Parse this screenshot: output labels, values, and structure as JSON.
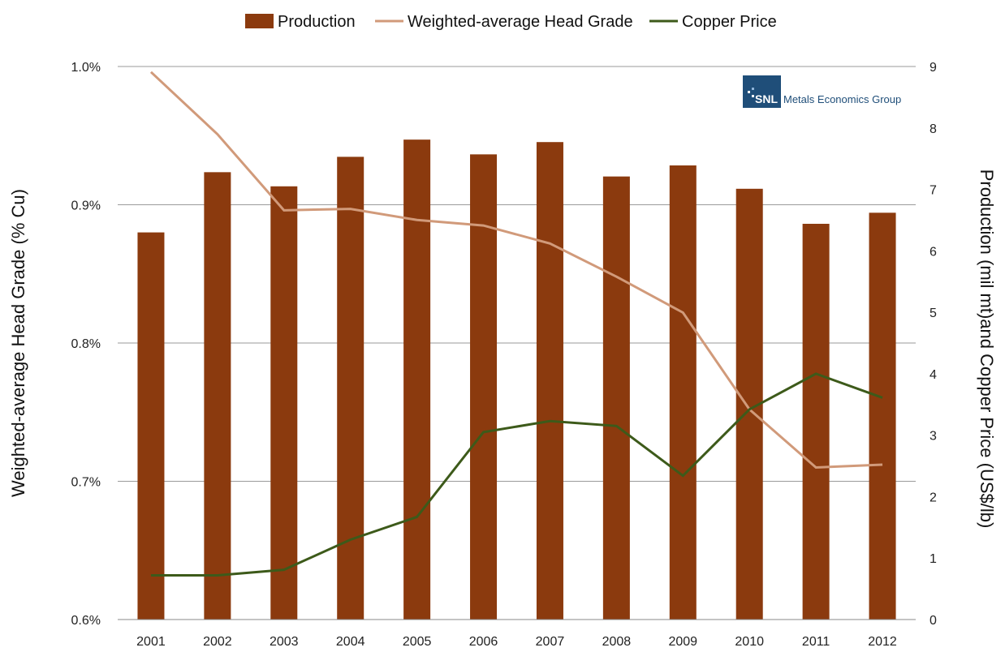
{
  "chart_data": {
    "type": "bar",
    "categories": [
      "2001",
      "2002",
      "2003",
      "2004",
      "2005",
      "2006",
      "2007",
      "2008",
      "2009",
      "2010",
      "2011",
      "2012"
    ],
    "series": [
      {
        "name": "Production",
        "type": "bar",
        "axis": "right",
        "color": "#8B3A0E",
        "values": [
          6.3,
          7.28,
          7.05,
          7.53,
          7.81,
          7.57,
          7.77,
          7.21,
          7.39,
          7.01,
          6.44,
          6.62
        ]
      },
      {
        "name": "Weighted-average Head Grade",
        "type": "line",
        "axis": "left",
        "color": "#D19A7A",
        "values": [
          0.996,
          0.951,
          0.896,
          0.897,
          0.889,
          0.885,
          0.872,
          0.848,
          0.822,
          0.752,
          0.71,
          0.712
        ]
      },
      {
        "name": "Copper Price",
        "type": "line",
        "axis": "right",
        "color": "#3D5A1A",
        "values": [
          0.72,
          0.72,
          0.81,
          1.3,
          1.67,
          3.05,
          3.23,
          3.15,
          2.34,
          3.42,
          4.0,
          3.61
        ]
      }
    ],
    "y_left": {
      "label": "Weighted-average Head Grade (% Cu)",
      "ticks": [
        "0.6%",
        "0.7%",
        "0.8%",
        "0.9%",
        "1.0%"
      ],
      "min": 0.6,
      "max": 1.0
    },
    "y_right": {
      "label": "Production (mil mt)and Copper Price (US$/lb)",
      "ticks": [
        "0",
        "1",
        "2",
        "3",
        "4",
        "5",
        "6",
        "7",
        "8",
        "9"
      ],
      "min": 0,
      "max": 9
    },
    "legend": {
      "position": "top",
      "items": [
        "Production",
        "Weighted-average Head Grade",
        "Copper Price"
      ]
    },
    "grid": true,
    "gridline_color": "#9a9a9a"
  },
  "logo": {
    "badge": "SNL",
    "text": "Metals Economics Group",
    "badge_color": "#1F4E79",
    "text_color": "#1F4E79"
  }
}
